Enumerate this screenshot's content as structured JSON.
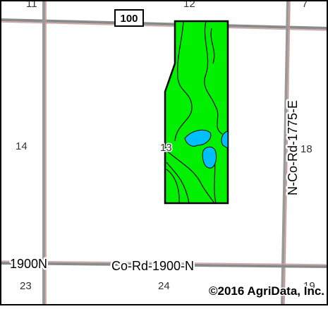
{
  "map": {
    "highway_shield": "100",
    "section_numbers": {
      "top_left": "11",
      "top_center": "12",
      "top_right": "7",
      "left": "14",
      "center": "13",
      "right": "18",
      "bottom_left": "23",
      "bottom_center": "24",
      "bottom_right": "19"
    },
    "roads": {
      "vertical_east": "N-Co-Rd-1775-E",
      "horizontal_south_short": "1900N",
      "horizontal_south": "Co-Rd-1900-N"
    },
    "copyright": "©2016 AgriData, Inc."
  },
  "colors": {
    "field_fill": "#00f000",
    "water": "#00bfff",
    "road": "#b88a88",
    "frame": "#000000",
    "background": "#ffffff"
  }
}
